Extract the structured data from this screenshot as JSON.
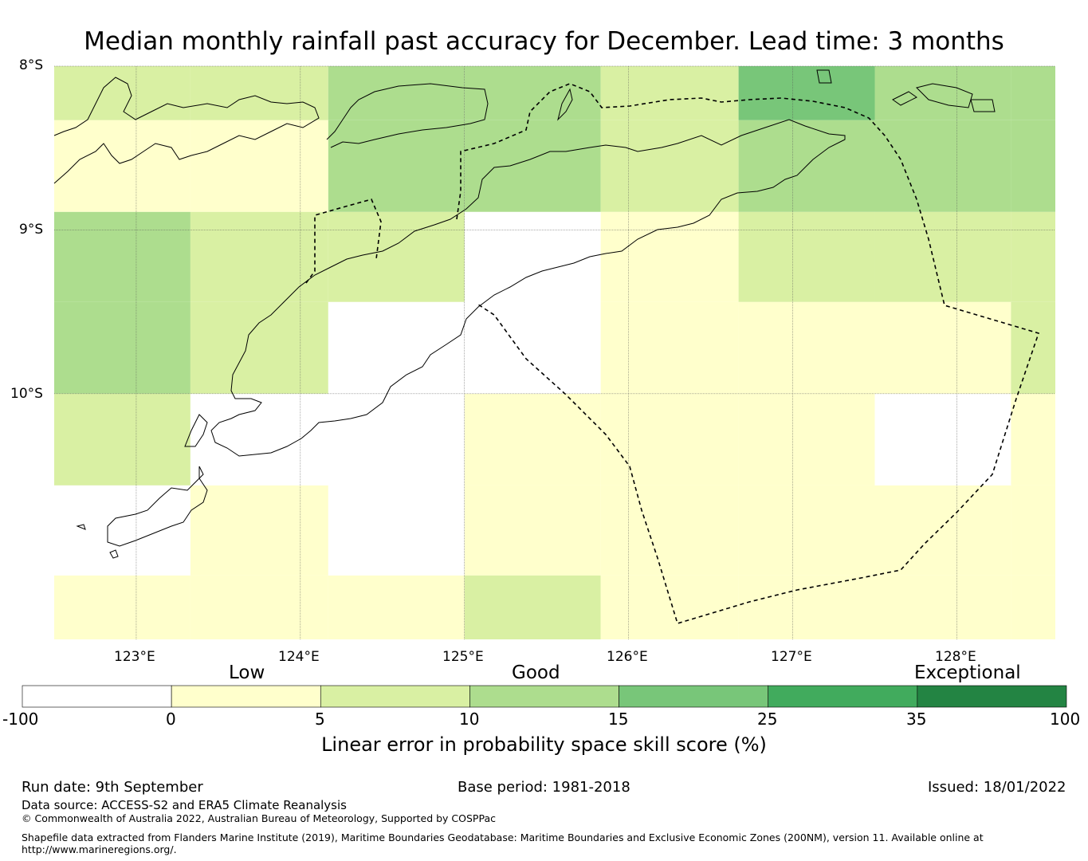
{
  "title": "Median monthly rainfall past accuracy for December. Lead time: 3 months",
  "map": {
    "lat_labels": [
      "8°S",
      "9°S",
      "10°S"
    ],
    "lon_labels": [
      "123°E",
      "124°E",
      "125°E",
      "126°E",
      "127°E",
      "128°E"
    ],
    "lon_range": [
      122.5,
      128.6
    ],
    "lat_range": [
      -11.5,
      -8.0
    ],
    "grid_lons": [
      123,
      124,
      125,
      126,
      127,
      128
    ],
    "grid_lats": [
      -8,
      -9,
      -10
    ],
    "cell_values_note": "",
    "cell_lon_edges": [
      122.5,
      123.33,
      124.17,
      125.0,
      125.83,
      126.67,
      127.5,
      128.33,
      128.6
    ],
    "cell_lat_edges": [
      -8.0,
      -8.33,
      -8.89,
      -9.44,
      -10.0,
      -10.56,
      -11.11,
      -11.5
    ],
    "cell_classes": [
      [
        2,
        2,
        3,
        3,
        2,
        4,
        3,
        3
      ],
      [
        1,
        1,
        3,
        3,
        2,
        3,
        3,
        3
      ],
      [
        3,
        2,
        2,
        0,
        1,
        2,
        2,
        2
      ],
      [
        3,
        2,
        0,
        0,
        1,
        1,
        1,
        2
      ],
      [
        2,
        0,
        0,
        1,
        1,
        1,
        0,
        1
      ],
      [
        0,
        1,
        0,
        1,
        1,
        1,
        1,
        1
      ],
      [
        1,
        1,
        1,
        2,
        1,
        1,
        1,
        1
      ]
    ]
  },
  "colorbar": {
    "categories": [
      "Low",
      "Good",
      "Exceptional"
    ],
    "ticks": [
      "-100",
      "0",
      "5",
      "10",
      "15",
      "25",
      "35",
      "100"
    ],
    "colors": [
      "#ffffff",
      "#ffffcc",
      "#d9f0a3",
      "#addd8e",
      "#78c679",
      "#41ab5d",
      "#238443"
    ],
    "label": "Linear error in probability space skill score (%)"
  },
  "footer": {
    "run_date": "Run date: 9th September",
    "base_period": "Base period: 1981-2018",
    "issued": "Issued: 18/01/2022",
    "data_source": "Data source: ACCESS-S2 and ERA5 Climate Reanalysis",
    "copyright": "© Commonwealth of Australia 2022, Australian Bureau of Meteorology, Supported by COSPPac",
    "shapefile": "Shapefile data extracted from Flanders Marine Institute (2019), Maritime Boundaries Geodatabase: Maritime Boundaries and Exclusive Economic Zones (200NM), version 11. Available online at",
    "url": "http://www.marineregions.org/."
  }
}
